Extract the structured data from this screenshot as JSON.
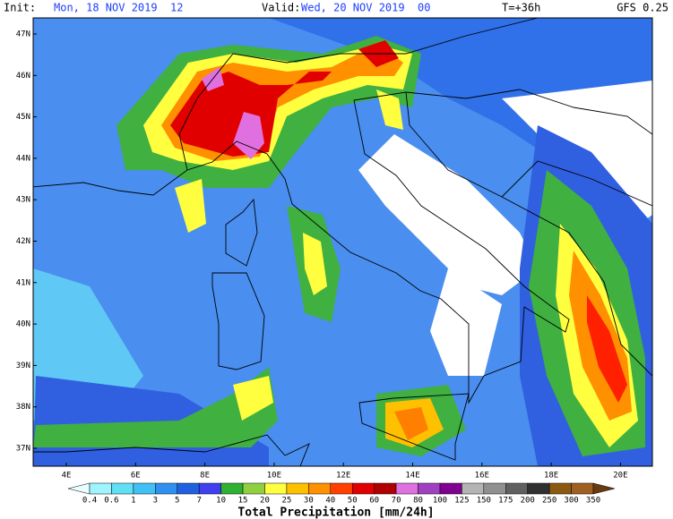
{
  "header": {
    "init_label": "Init:",
    "init": "Mon, 18 NOV 2019  12",
    "valid_label": "Valid:",
    "valid": "Wed, 20 NOV 2019  00",
    "forecast": "T=+36h",
    "model": "GFS 0.25"
  },
  "latitudes": [
    "47N",
    "46N",
    "45N",
    "44N",
    "43N",
    "42N",
    "41N",
    "40N",
    "39N",
    "38N",
    "37N"
  ],
  "longitudes": [
    "4E",
    "6E",
    "8E",
    "10E",
    "12E",
    "14E",
    "16E",
    "18E",
    "20E"
  ],
  "colorbar": {
    "title": "Total Precipitation [mm/24h]",
    "labels": [
      "0.4",
      "0.6",
      "1",
      "3",
      "5",
      "7",
      "10",
      "15",
      "20",
      "25",
      "30",
      "40",
      "50",
      "60",
      "70",
      "80",
      "100",
      "125",
      "150",
      "175",
      "200",
      "250",
      "300",
      "350"
    ],
    "colors": [
      "#e8ffff",
      "#a0f4ff",
      "#60e0f4",
      "#40c0f4",
      "#3090f0",
      "#2060e0",
      "#4040f0",
      "#30b030",
      "#90d040",
      "#ffff40",
      "#ffc000",
      "#ff9000",
      "#ff4000",
      "#e00000",
      "#b00000",
      "#e070e0",
      "#a040c0",
      "#800090",
      "#b4b4b4",
      "#909090",
      "#606060",
      "#303030",
      "#8b5a10",
      "#a06020",
      "#6b3a10"
    ]
  }
}
